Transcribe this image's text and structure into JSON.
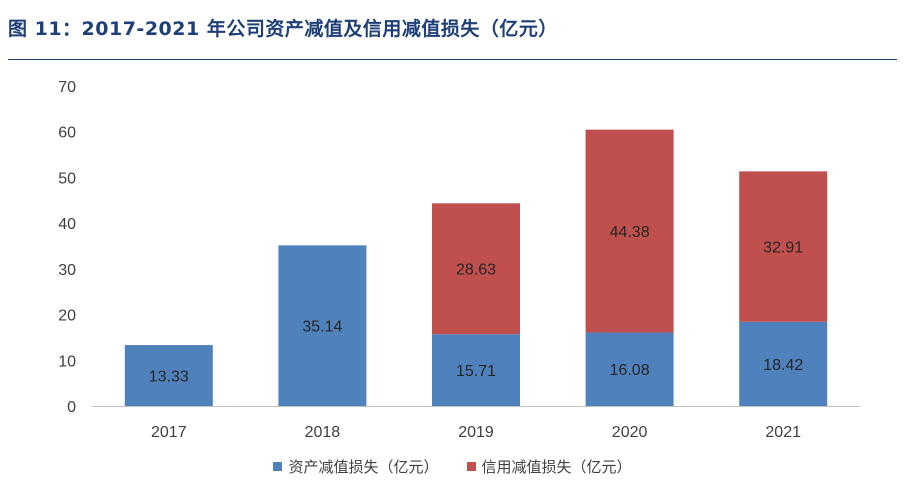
{
  "title": "图 11：2017-2021 年公司资产减值及信用减值损失（亿元）",
  "chart_data": {
    "type": "bar",
    "stacked": true,
    "categories": [
      "2017",
      "2018",
      "2019",
      "2020",
      "2021"
    ],
    "series": [
      {
        "name": "资产减值损失（亿元）",
        "values": [
          13.33,
          35.14,
          15.71,
          16.08,
          18.42
        ],
        "color": "#4f81bd"
      },
      {
        "name": "信用减值损失（亿元）",
        "values": [
          null,
          null,
          28.63,
          44.38,
          32.91
        ],
        "color": "#c0504d"
      }
    ],
    "ylim": [
      0,
      70
    ],
    "yticks": [
      0,
      10,
      20,
      30,
      40,
      50,
      60,
      70
    ],
    "grid": false,
    "legend": "bottom-center",
    "xlabel": "",
    "ylabel": ""
  }
}
